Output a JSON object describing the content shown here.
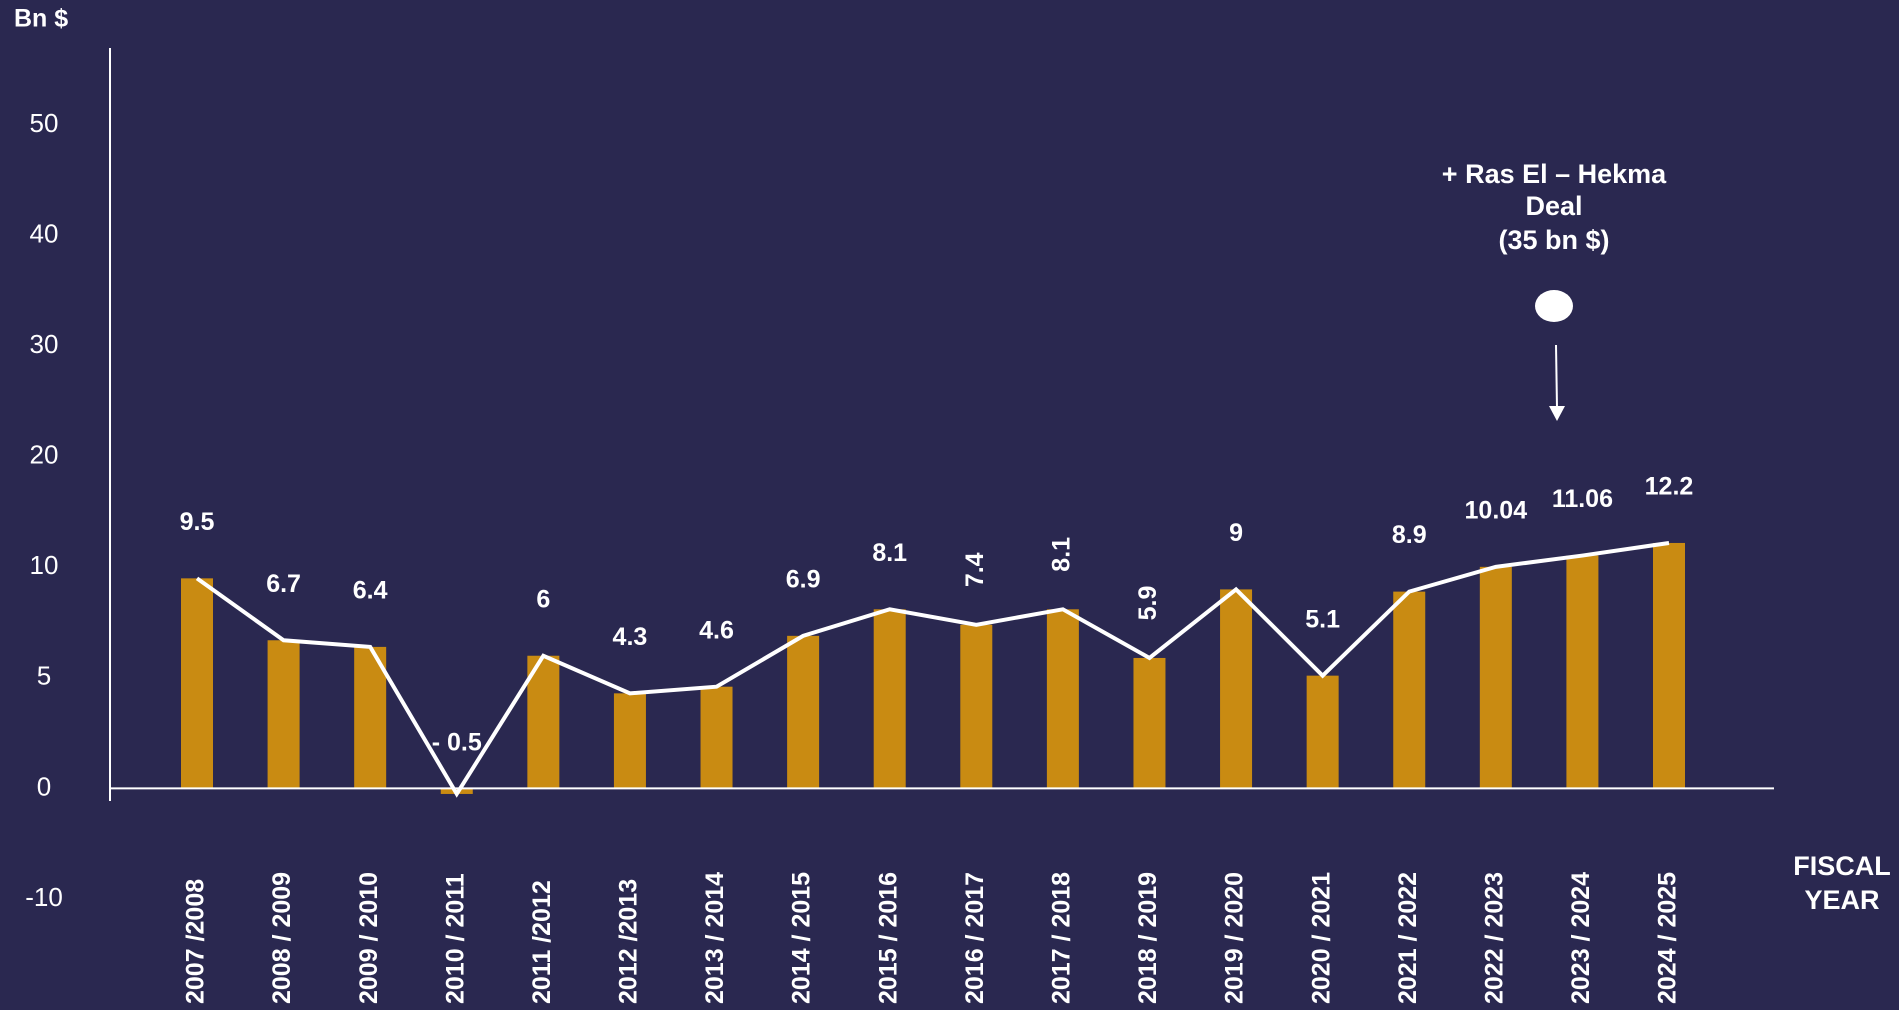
{
  "chart_data": {
    "type": "bar",
    "y_label": "Bn $",
    "x_label": [
      "FISCAL",
      "YEAR"
    ],
    "categories": [
      "2007 /2008",
      "2008 / 2009",
      "2009 / 2010",
      "2010 / 2011",
      "2011 /2012",
      "2012 /2013",
      "2013 / 2014",
      "2014 / 2015",
      "2015 / 2016",
      "2016 / 2017",
      "2017 / 2018",
      "2018 / 2019",
      "2019 / 2020",
      "2020 / 2021",
      "2021 / 2022",
      "2022 / 2023",
      "2023 / 2024",
      "2024 / 2025"
    ],
    "values": [
      9.5,
      6.7,
      6.4,
      -0.5,
      6,
      4.3,
      4.6,
      6.9,
      8.1,
      7.4,
      8.1,
      5.9,
      9,
      5.1,
      8.9,
      10.04,
      11.06,
      12.2
    ],
    "value_labels": [
      "9.5",
      "6.7",
      "6.4",
      "- 0.5",
      "6",
      "4.3",
      "4.6",
      "6.9",
      "8.1",
      "7.4",
      "8.1",
      "5.9",
      "9",
      "5.1",
      "8.9",
      "10.04",
      "11.06",
      "12.2"
    ],
    "color": "#c98b12",
    "line_color": "#ffffff",
    "ylim": [
      -10,
      50
    ],
    "yticks": [
      -10,
      0,
      5,
      10,
      20,
      30,
      40,
      50
    ],
    "annotation": [
      "+ Ras El – Hekma",
      "Deal",
      "(35 bn $)"
    ]
  }
}
